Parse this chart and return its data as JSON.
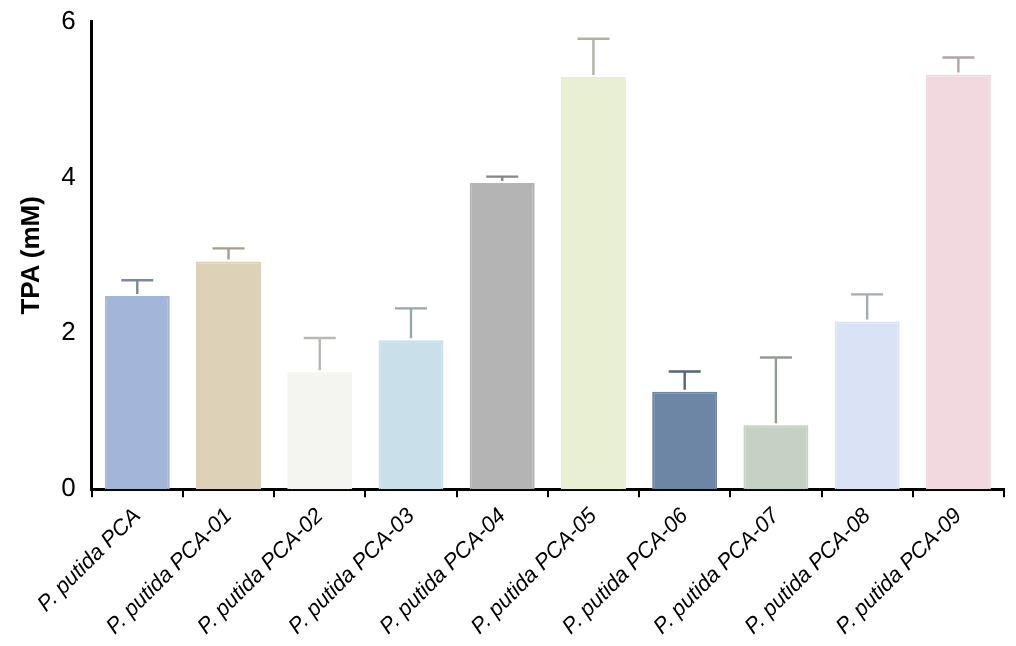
{
  "chart_data": {
    "type": "bar",
    "ylabel": "TPA (mM)",
    "categories": [
      "P. putida PCA",
      "P. putida PCA-01",
      "P. putida PCA-02",
      "P. putida PCA-03",
      "P. putida PCA-04",
      "P. putida PCA-05",
      "P. putida PCA-06",
      "P. putida PCA-07",
      "P. putida PCA-08",
      "P. putida PCA-09"
    ],
    "values": [
      2.48,
      2.92,
      1.5,
      1.91,
      3.93,
      5.29,
      1.25,
      0.82,
      2.15,
      5.32
    ],
    "errors": [
      0.2,
      0.17,
      0.44,
      0.41,
      0.08,
      0.49,
      0.26,
      0.87,
      0.35,
      0.22
    ],
    "colors": [
      "#a3b5d9",
      "#ddd2b8",
      "#f4f5f0",
      "#c9dfea",
      "#b4b4b4",
      "#e9efd2",
      "#6e86a6",
      "#c5d1c5",
      "#dae3f5",
      "#f2d9df"
    ],
    "ylim": [
      0,
      6
    ],
    "yticks": [
      0,
      2,
      4,
      6
    ],
    "grid": false,
    "legend": false
  }
}
